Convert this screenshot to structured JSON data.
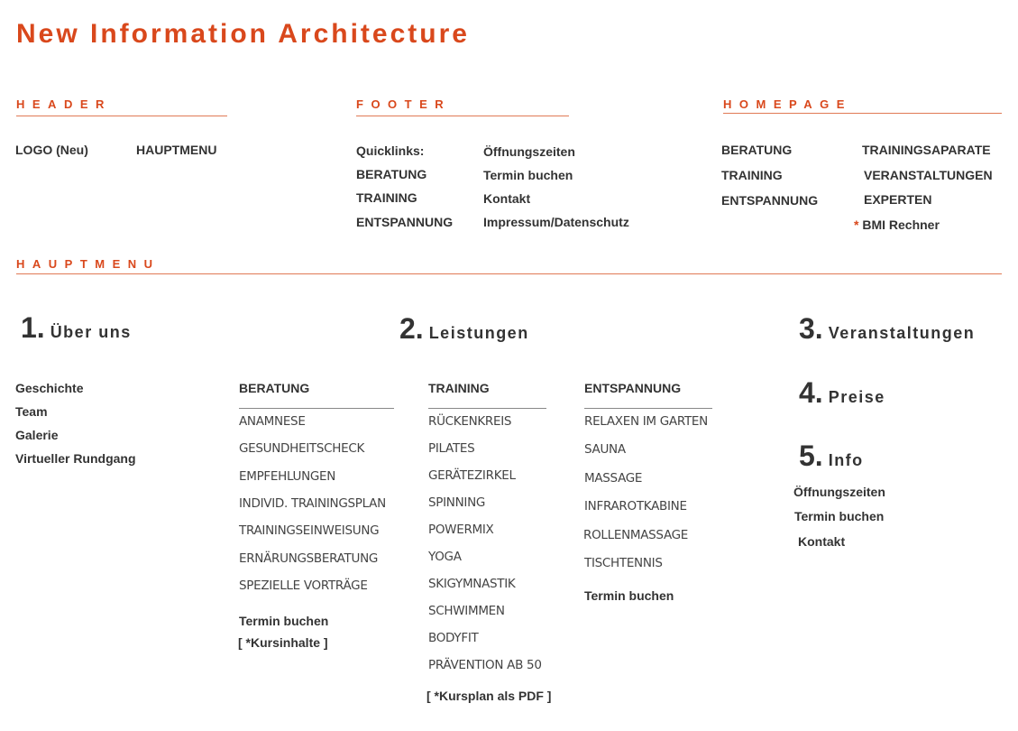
{
  "title": "New Information Architecture",
  "header": {
    "label": "HEADER",
    "items": [
      "LOGO (Neu)",
      "HAUPTMENU"
    ]
  },
  "footer": {
    "label": "FOOTER",
    "left": [
      "Quicklinks:",
      "BERATUNG",
      "TRAINING",
      "ENTSPANNUNG"
    ],
    "right": [
      "Öffnungszeiten",
      "Termin buchen",
      "Kontakt",
      "Impressum/Datenschutz"
    ]
  },
  "homepage": {
    "label": "HOMEPAGE",
    "left": [
      "BERATUNG",
      "TRAINING",
      "ENTSPANNUNG"
    ],
    "right": [
      "TRAININGSAPARATE",
      "VERANSTALTUNGEN",
      "EXPERTEN"
    ],
    "bmi_asterisk": "*",
    "bmi": "BMI Rechner"
  },
  "hauptmenu": {
    "label": "HAUPTMENU",
    "sections": [
      {
        "num": "1.",
        "title": "Über uns",
        "items": [
          "Geschichte",
          "Team",
          "Galerie",
          "Virtueller Rundgang"
        ]
      },
      {
        "num": "2.",
        "title": "Leistungen"
      },
      {
        "num": "3.",
        "title": "Veranstaltungen"
      },
      {
        "num": "4.",
        "title": "Preise"
      },
      {
        "num": "5.",
        "title": "Info",
        "items": [
          "Öffnungszeiten",
          "Termin buchen",
          "Kontakt"
        ]
      }
    ],
    "beratung": {
      "header": "BERATUNG",
      "items": [
        "ANAMNESE",
        "GESUNDHEITSCHECK",
        "EMPFEHLUNGEN",
        "INDIVID. TRAININGSPLAN",
        "TRAININGSEINWEISUNG",
        "ERNÄRUNGSBERATUNG",
        "SPEZIELLE VORTRÄGE"
      ],
      "extra": [
        "Termin buchen",
        "[ *Kursinhalte ]"
      ]
    },
    "training": {
      "header": "TRAINING",
      "items": [
        "RÜCKENKREIS",
        "PILATES",
        "GERÄTEZIRKEL",
        "SPINNING",
        "POWERMIX",
        "YOGA",
        "SKIGYMNASTIK",
        "SCHWIMMEN",
        "BODYFIT",
        "PRÄVENTION AB 50"
      ],
      "extra": [
        "[ *Kursplan als PDF ]"
      ]
    },
    "entspannung": {
      "header": "ENTSPANNUNG",
      "items": [
        "RELAXEN IM GARTEN",
        "SAUNA",
        "MASSAGE",
        "INFRAROTKABINE",
        "ROLLENMASSAGE",
        "TISCHTENNIS"
      ],
      "extra": [
        "Termin buchen"
      ]
    }
  },
  "colors": {
    "accent": "#d9481c",
    "text": "#333333"
  }
}
